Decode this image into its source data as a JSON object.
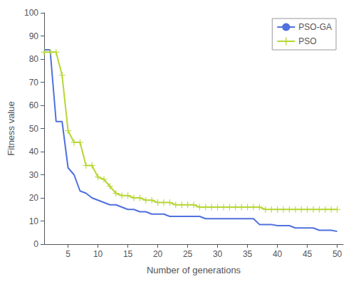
{
  "chart_data": {
    "type": "line",
    "xlabel": "Number of generations",
    "ylabel": "Fitness value",
    "xlim": [
      1,
      51
    ],
    "ylim": [
      0,
      100
    ],
    "xticks": [
      5,
      10,
      15,
      20,
      25,
      30,
      35,
      40,
      45,
      50
    ],
    "yticks": [
      0,
      10,
      20,
      30,
      40,
      50,
      60,
      70,
      80,
      90,
      100
    ],
    "grid": false,
    "legend": "upper right",
    "x": [
      1,
      2,
      3,
      4,
      5,
      6,
      7,
      8,
      9,
      10,
      11,
      12,
      13,
      14,
      15,
      16,
      17,
      18,
      19,
      20,
      21,
      22,
      23,
      24,
      25,
      26,
      27,
      28,
      29,
      30,
      31,
      32,
      33,
      34,
      35,
      36,
      37,
      38,
      39,
      40,
      41,
      42,
      43,
      44,
      45,
      46,
      47,
      48,
      49,
      50
    ],
    "series": [
      {
        "name": "PSO-GA",
        "marker": "none",
        "values": [
          84,
          84,
          53,
          53,
          33,
          30,
          23,
          22,
          20,
          19,
          18,
          17,
          17,
          16,
          15,
          15,
          14,
          14,
          13,
          13,
          13,
          12,
          12,
          12,
          12,
          12,
          12,
          11,
          11,
          11,
          11,
          11,
          11,
          11,
          11,
          11,
          8.5,
          8.5,
          8.5,
          8,
          8,
          8,
          7,
          7,
          7,
          7,
          6,
          6,
          6,
          5.5
        ]
      },
      {
        "name": "PSO",
        "marker": "plus",
        "values": [
          83,
          83,
          83,
          73,
          49,
          44,
          44,
          34,
          34,
          29,
          28,
          25,
          22,
          21,
          21,
          20,
          20,
          19,
          19,
          18,
          18,
          18,
          17,
          17,
          17,
          17,
          16,
          16,
          16,
          16,
          16,
          16,
          16,
          16,
          16,
          16,
          16,
          15,
          15,
          15,
          15,
          15,
          15,
          15,
          15,
          15,
          15,
          15,
          15,
          15
        ]
      }
    ]
  }
}
